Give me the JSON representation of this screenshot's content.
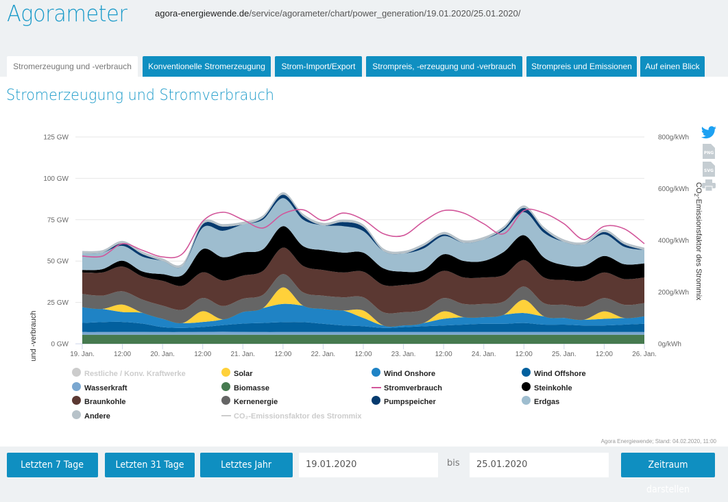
{
  "header": {
    "brand": "Agorameter",
    "url_host": "agora-energiewende.de",
    "url_path": "/service/agorameter/chart/power_generation/19.01.2020/25.01.2020/"
  },
  "tabs": [
    {
      "label": "Stromerzeugung und -verbrauch",
      "active": true
    },
    {
      "label": "Konventionelle Stromerzeugung",
      "active": false
    },
    {
      "label": "Strom-Import/Export",
      "active": false
    },
    {
      "label": "Strompreis, -erzeugung und -verbrauch",
      "active": false
    },
    {
      "label": "Strompreis und Emissionen",
      "active": false
    },
    {
      "label": "Auf einen Blick",
      "active": false
    }
  ],
  "page_title": "Stromerzeugung und Stromverbrauch",
  "side_icons": [
    "twitter-icon",
    "png-download-icon",
    "svg-download-icon",
    "print-icon"
  ],
  "side_icon_labels": {
    "png": "PNG",
    "svg": "SVG"
  },
  "credit": "Agora Energiewende; Stand: 04.02.2020, 11:00",
  "controls": {
    "last7": "Letzten 7 Tage",
    "last31": "Letzten 31 Tage",
    "lastYear": "Letztes Jahr",
    "from": "19.01.2020",
    "bis": "bis",
    "to": "25.01.2020",
    "submit": "Zeitraum darstellen"
  },
  "chart_data": {
    "type": "area",
    "stacked": true,
    "title": "Stromerzeugung und Stromverbrauch",
    "xlabel": "",
    "ylabel": "Stromerzeugung und -verbrauch",
    "y2label": "CO2-Emissionsfaktor des Strommix",
    "ylim": [
      0,
      125
    ],
    "y2lim": [
      0,
      800
    ],
    "yticks": [
      "0 GW",
      "25 GW",
      "50 GW",
      "75 GW",
      "100 GW",
      "125 GW"
    ],
    "y2ticks": [
      "0g/kWh",
      "200g/kWh",
      "400g/kWh",
      "600g/kWh",
      "800g/kWh"
    ],
    "xticks": [
      "19. Jan.",
      "12:00",
      "20. Jan.",
      "12:00",
      "21. Jan.",
      "12:00",
      "22. Jan.",
      "12:00",
      "23. Jan.",
      "12:00",
      "24. Jan.",
      "12:00",
      "25. Jan.",
      "12:00",
      "26. Jan."
    ],
    "x_interval": "6h",
    "x_start": "19.01.2020 00:00",
    "x_end": "26.01.2020 00:00",
    "grid": true,
    "legend_position": "bottom",
    "series": [
      {
        "name": "Biomasse",
        "color": "#467a4f",
        "values": [
          5.5,
          5.5,
          5.5,
          5.5,
          5.5,
          5.5,
          5.5,
          5.5,
          5.5,
          5.5,
          5.5,
          5.5,
          5.5,
          5.5,
          5.5,
          5.5,
          5.5,
          5.5,
          5.5,
          5.5,
          5.5,
          5.5,
          5.5,
          5.5,
          5.5,
          5.5,
          5.5,
          5.5,
          5.5
        ]
      },
      {
        "name": "Wasserkraft",
        "color": "#7aa7d0",
        "values": [
          1.6,
          1.6,
          1.7,
          1.7,
          1.6,
          1.6,
          1.7,
          1.8,
          1.7,
          1.6,
          1.6,
          1.6,
          1.6,
          1.6,
          1.6,
          1.6,
          1.6,
          1.6,
          1.6,
          1.6,
          1.6,
          1.6,
          1.6,
          1.6,
          1.6,
          1.6,
          1.6,
          1.6,
          1.6
        ]
      },
      {
        "name": "Wind Offshore",
        "color": "#02609e",
        "values": [
          5.5,
          6.0,
          6.0,
          5.0,
          3.0,
          2.5,
          3.0,
          4.0,
          5.0,
          5.5,
          6.0,
          6.0,
          5.0,
          4.0,
          3.5,
          2.5,
          3.0,
          3.5,
          4.0,
          4.5,
          5.0,
          5.0,
          5.5,
          4.5,
          4.5,
          4.0,
          4.0,
          4.5,
          5.0
        ]
      },
      {
        "name": "Wind Onshore",
        "color": "#1f83c5",
        "values": [
          9.5,
          8.0,
          6.0,
          6.5,
          5.0,
          3.0,
          3.0,
          3.5,
          7.0,
          9.0,
          11.0,
          10.0,
          9.0,
          9.0,
          5.0,
          1.5,
          1.0,
          2.0,
          4.0,
          4.5,
          4.0,
          5.5,
          6.0,
          5.0,
          4.0,
          3.5,
          4.0,
          4.0,
          4.5
        ]
      },
      {
        "name": "Solar",
        "color": "#ffd13a",
        "values": [
          0,
          0,
          4.5,
          0,
          0,
          0,
          6.5,
          0,
          0,
          0,
          10.0,
          0,
          0,
          0,
          4.5,
          0,
          0,
          0,
          4.5,
          0,
          0,
          0,
          8.0,
          0,
          0,
          0,
          4.5,
          0,
          0
        ]
      },
      {
        "name": "Kernenergie",
        "color": "#656565",
        "values": [
          8.0,
          8.0,
          8.0,
          8.0,
          8.0,
          8.0,
          8.0,
          8.0,
          8.0,
          8.0,
          8.0,
          8.0,
          8.0,
          8.0,
          8.0,
          8.0,
          8.0,
          8.0,
          8.0,
          8.0,
          8.0,
          8.0,
          8.0,
          8.0,
          8.0,
          8.0,
          8.0,
          8.0,
          8.0
        ]
      },
      {
        "name": "Braunkohle",
        "color": "#5b3832",
        "values": [
          13.0,
          14.0,
          15.0,
          14.0,
          15.0,
          14.5,
          15.5,
          15.5,
          14.0,
          14.5,
          16.0,
          16.0,
          15.5,
          15.0,
          15.5,
          16.5,
          16.5,
          17.0,
          16.5,
          16.0,
          16.0,
          16.0,
          16.0,
          15.5,
          15.0,
          15.5,
          15.5,
          15.5,
          15.5
        ]
      },
      {
        "name": "Steinkohle",
        "color": "#000000",
        "values": [
          1.5,
          2.0,
          3.5,
          3.0,
          4.0,
          6.5,
          14.0,
          14.0,
          14.0,
          13.0,
          13.0,
          12.0,
          12.0,
          12.0,
          11.5,
          10.0,
          8.0,
          7.0,
          10.0,
          10.0,
          10.0,
          14.0,
          15.0,
          12.0,
          9.0,
          9.0,
          10.0,
          9.0,
          8.5
        ]
      },
      {
        "name": "Erdgas",
        "color": "#9ebdcf",
        "values": [
          10.0,
          10.0,
          9.0,
          9.0,
          8.0,
          5.5,
          13.0,
          16.0,
          17.0,
          18.0,
          17.0,
          16.0,
          15.0,
          16.0,
          13.0,
          10.5,
          11.0,
          13.0,
          11.0,
          11.0,
          13.0,
          13.0,
          14.0,
          15.0,
          14.0,
          13.0,
          13.0,
          10.5,
          8.0
        ]
      },
      {
        "name": "Pumpspeicher",
        "color": "#053a6e",
        "values": [
          0,
          0,
          1.5,
          1.5,
          0,
          0,
          2.0,
          2.5,
          0,
          1.0,
          2.0,
          2.0,
          0,
          2.5,
          2.5,
          0,
          0,
          1.5,
          1.0,
          0,
          0,
          1.0,
          2.5,
          2.0,
          0,
          0,
          1.5,
          1.5,
          0
        ]
      },
      {
        "name": "Andere",
        "color": "#b7c2c9",
        "values": [
          1.5,
          1.5,
          1.5,
          1.5,
          1.5,
          1.5,
          1.5,
          1.5,
          1.5,
          1.5,
          1.5,
          1.5,
          1.5,
          1.5,
          1.5,
          1.5,
          1.5,
          1.5,
          1.5,
          1.5,
          1.5,
          1.5,
          1.5,
          1.5,
          1.5,
          1.5,
          1.5,
          1.5,
          1.5
        ]
      }
    ],
    "line_series": [
      {
        "name": "Stromverbrauch",
        "color": "#d2569a",
        "values": [
          53.0,
          53.0,
          60.5,
          56.5,
          52.5,
          54.5,
          74.0,
          79.5,
          75.0,
          70.0,
          78.5,
          81.0,
          74.5,
          79.0,
          75.0,
          66.5,
          65.5,
          74.0,
          80.5,
          79.0,
          72.5,
          66.5,
          80.5,
          79.0,
          72.5,
          63.0,
          71.0,
          69.5,
          60.5
        ]
      }
    ],
    "legend": [
      {
        "name": "Restliche / Konv. Kraftwerke",
        "color": "#cccccc",
        "shape": "dot",
        "hidden": true
      },
      {
        "name": "Solar",
        "color": "#ffd13a",
        "shape": "dot"
      },
      {
        "name": "Wind Onshore",
        "color": "#1f83c5",
        "shape": "dot"
      },
      {
        "name": "Wind Offshore",
        "color": "#02609e",
        "shape": "dot"
      },
      {
        "name": "Wasserkraft",
        "color": "#7aa7d0",
        "shape": "dot"
      },
      {
        "name": "Biomasse",
        "color": "#467a4f",
        "shape": "dot"
      },
      {
        "name": "Stromverbrauch",
        "color": "#d2569a",
        "shape": "line"
      },
      {
        "name": "Steinkohle",
        "color": "#000000",
        "shape": "dot"
      },
      {
        "name": "Braunkohle",
        "color": "#5b3832",
        "shape": "dot"
      },
      {
        "name": "Kernenergie",
        "color": "#656565",
        "shape": "dot"
      },
      {
        "name": "Pumpspeicher",
        "color": "#053a6e",
        "shape": "dot"
      },
      {
        "name": "Erdgas",
        "color": "#9ebdcf",
        "shape": "dot"
      },
      {
        "name": "Andere",
        "color": "#b7c2c9",
        "shape": "dot"
      },
      {
        "name": "CO₂-Emissionsfaktor des Strommix",
        "color": "#cccccc",
        "shape": "line",
        "hidden": true
      }
    ]
  }
}
